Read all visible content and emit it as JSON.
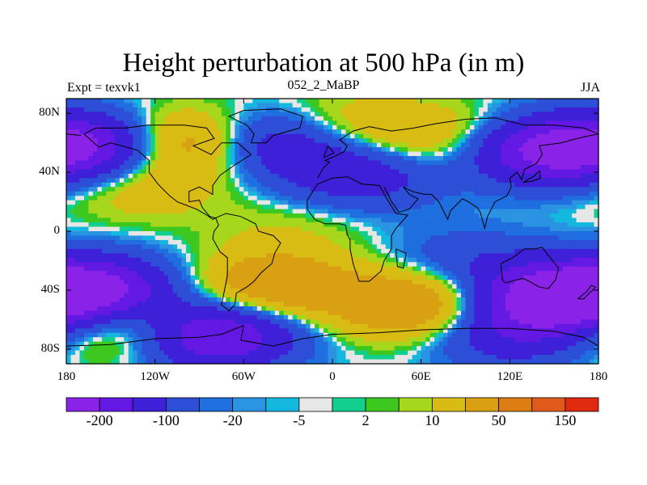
{
  "chart_data": {
    "type": "heatmap",
    "title": "Height perturbation at 500 hPa (in m)",
    "left_subtitle": "Expt = texvk1",
    "center_subtitle": "052_2_MaBP",
    "right_subtitle": "JJA",
    "x_ticks": [
      "180",
      "120W",
      "60W",
      "0",
      "60E",
      "120E",
      "180"
    ],
    "y_ticks": [
      "80N",
      "40N",
      "0",
      "40S",
      "80S"
    ],
    "xlim": [
      -180,
      180
    ],
    "ylim": [
      -90,
      90
    ],
    "colorbar": {
      "colors": [
        "#8b22e8",
        "#6418e4",
        "#3d20d8",
        "#2d4fd8",
        "#1f6fe0",
        "#2a93e2",
        "#14b8de",
        "#e6e6e6",
        "#12cf8e",
        "#3cc81e",
        "#a6d71c",
        "#d8bc14",
        "#d8a012",
        "#de7d14",
        "#e05a1c",
        "#e02a10"
      ],
      "labels": [
        "-200",
        "-100",
        "-20",
        "-5",
        "2",
        "10",
        "50",
        "150"
      ]
    },
    "fields": [
      {
        "lon": -160,
        "lat": 58,
        "amp": -150
      },
      {
        "lon": -100,
        "lat": 60,
        "amp": 120
      },
      {
        "lon": -40,
        "lat": 60,
        "amp": -110
      },
      {
        "lon": 5,
        "lat": 70,
        "amp": 50
      },
      {
        "lon": 20,
        "lat": 38,
        "amp": -80
      },
      {
        "lon": 80,
        "lat": 62,
        "amp": 60
      },
      {
        "lon": 140,
        "lat": 55,
        "amp": -160
      },
      {
        "lon": -130,
        "lat": 30,
        "amp": 40
      },
      {
        "lon": -30,
        "lat": 0,
        "amp": 20
      },
      {
        "lon": -160,
        "lat": -40,
        "amp": -160
      },
      {
        "lon": -40,
        "lat": -38,
        "amp": 100
      },
      {
        "lon": 55,
        "lat": -50,
        "amp": 110
      },
      {
        "lon": 150,
        "lat": -45,
        "amp": -190
      },
      {
        "lon": 90,
        "lat": -20,
        "amp": -40
      },
      {
        "lon": -80,
        "lat": -70,
        "amp": -170
      },
      {
        "lon": 120,
        "lat": -70,
        "amp": -80
      },
      {
        "lon": -140,
        "lat": -65,
        "amp": 80
      }
    ]
  }
}
